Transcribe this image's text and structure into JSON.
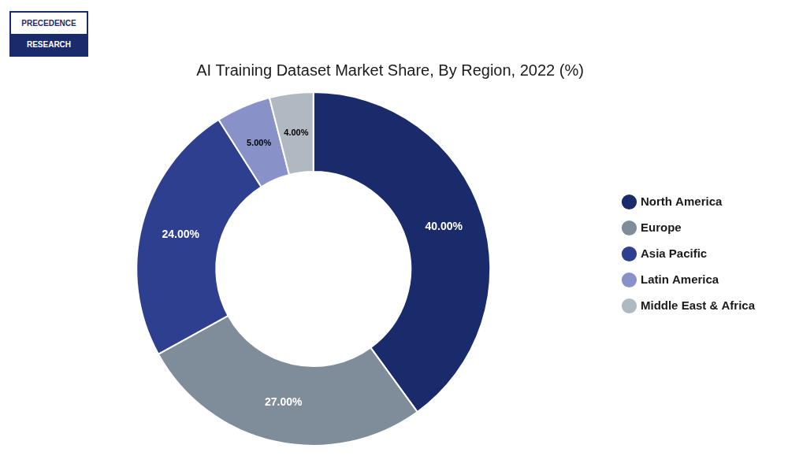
{
  "chart_data": {
    "type": "doughnut",
    "title": "AI Training Dataset Market Share, By Region, 2022 (%)",
    "categories": [
      "North America",
      "Europe",
      "Asia Pacific",
      "Latin America",
      "Middle East & Africa"
    ],
    "values": [
      40.0,
      27.0,
      24.0,
      5.0,
      4.0
    ],
    "value_labels": [
      "40.00%",
      "27.00%",
      "24.00%",
      "5.00%",
      "4.00%"
    ],
    "colors": [
      "#1a2b6b",
      "#7f8c9a",
      "#2e3f8f",
      "#8892c8",
      "#b0b8c1"
    ],
    "data_labels": true,
    "legend": "right",
    "annotations": [
      "PRECEDENCE",
      "RESEARCH"
    ]
  }
}
